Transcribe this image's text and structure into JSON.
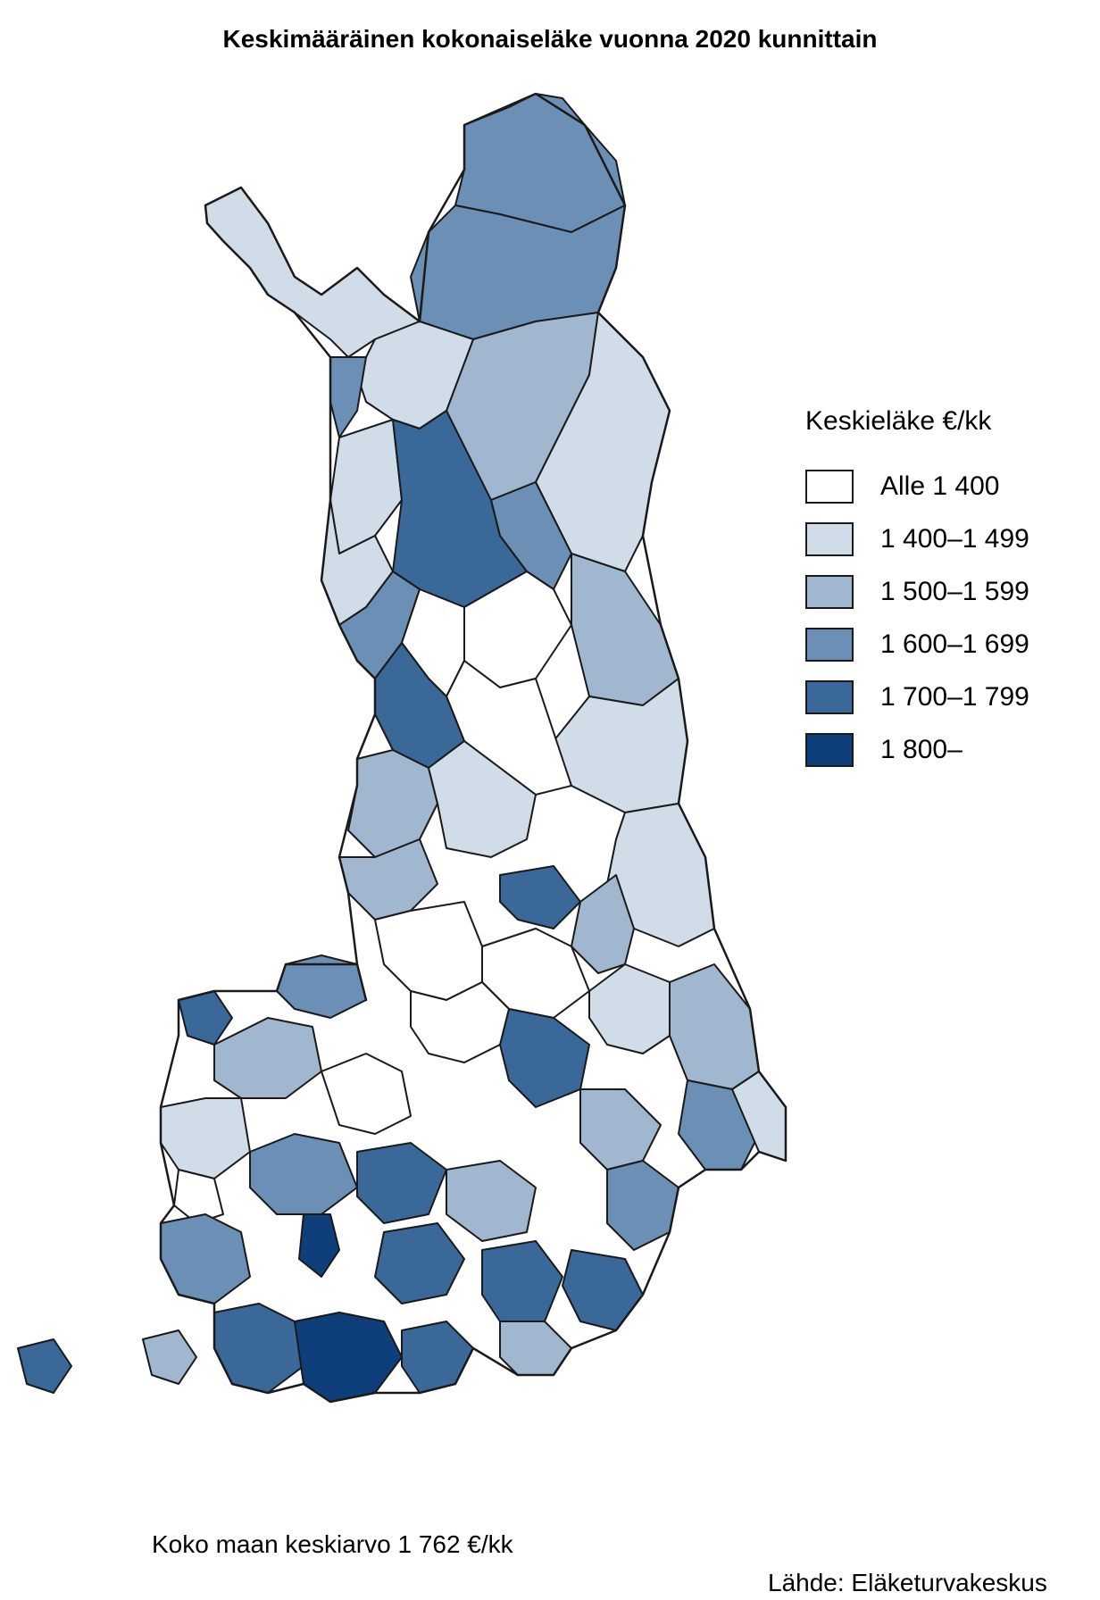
{
  "title": "Keskimääräinen kokonaiseläke vuonna 2020 kunnittain",
  "legend": {
    "title": "Keskieläke €/kk",
    "classes": [
      {
        "label": "Alle 1 400",
        "color": "#ffffff"
      },
      {
        "label": "1 400–1 499",
        "color": "#d0dce8"
      },
      {
        "label": "1 500–1 599",
        "color": "#a1b7cf"
      },
      {
        "label": "1 600–1 699",
        "color": "#6b8fb5"
      },
      {
        "label": "1 700–1 799",
        "color": "#3a6898"
      },
      {
        "label": "1 800–",
        "color": "#0f3f7a"
      }
    ]
  },
  "footer": {
    "national_average": "Koko maan keskiarvo 1 762 €/kk",
    "source": "Lähde: Eläketurvakeskus"
  }
}
